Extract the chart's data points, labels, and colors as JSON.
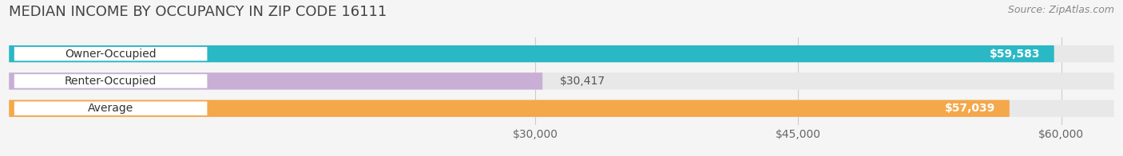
{
  "title": "MEDIAN INCOME BY OCCUPANCY IN ZIP CODE 16111",
  "source": "Source: ZipAtlas.com",
  "categories": [
    "Owner-Occupied",
    "Renter-Occupied",
    "Average"
  ],
  "values": [
    59583,
    30417,
    57039
  ],
  "bar_colors": [
    "#2ab8c5",
    "#c9aed6",
    "#f4a84a"
  ],
  "label_texts": [
    "$59,583",
    "$30,417",
    "$57,039"
  ],
  "x_ticks": [
    30000,
    45000,
    60000
  ],
  "x_tick_labels": [
    "$30,000",
    "$45,000",
    "$60,000"
  ],
  "xlim": [
    0,
    63000
  ],
  "background_color": "#f5f5f5",
  "bar_background_color": "#e8e8e8",
  "title_fontsize": 13,
  "source_fontsize": 9,
  "label_fontsize": 10,
  "tick_fontsize": 10
}
